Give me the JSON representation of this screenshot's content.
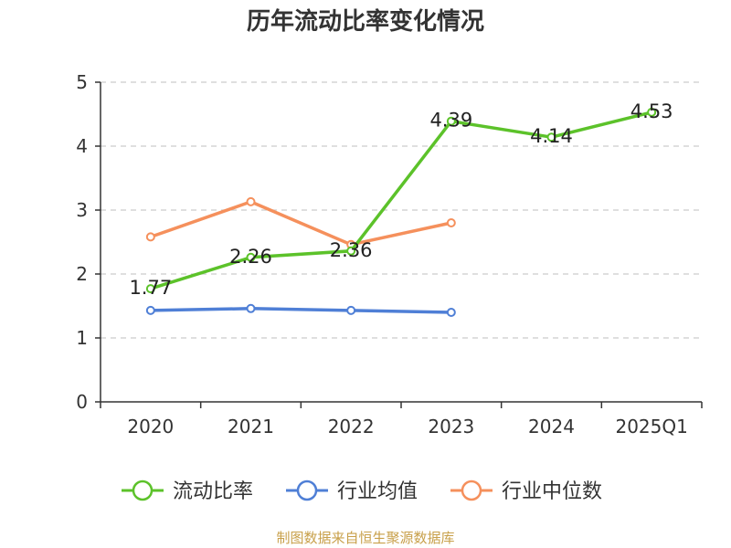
{
  "chart_data": {
    "type": "line",
    "title": "历年流动比率变化情况",
    "xlabel": "",
    "ylabel": "",
    "categories": [
      "2020",
      "2021",
      "2022",
      "2023",
      "2024",
      "2025Q1"
    ],
    "ylim": [
      0,
      5
    ],
    "yticks": [
      0,
      1,
      2,
      3,
      4,
      5
    ],
    "grid": "dashed horizontal",
    "legend_position": "bottom",
    "series": [
      {
        "name": "流动比率",
        "color": "#5cc22a",
        "values": [
          1.77,
          2.26,
          2.36,
          4.39,
          4.14,
          4.53
        ],
        "labels": [
          "1.77",
          "2.26",
          "2.36",
          "4.39",
          "4.14",
          "4.53"
        ]
      },
      {
        "name": "行业均值",
        "color": "#4f7fd6",
        "values": [
          1.43,
          1.46,
          1.43,
          1.4,
          null,
          null
        ]
      },
      {
        "name": "行业中位数",
        "color": "#f5905c",
        "values": [
          2.58,
          3.13,
          2.46,
          2.8,
          null,
          null
        ]
      }
    ]
  },
  "footer": {
    "source": "制图数据来自恒生聚源数据库"
  }
}
